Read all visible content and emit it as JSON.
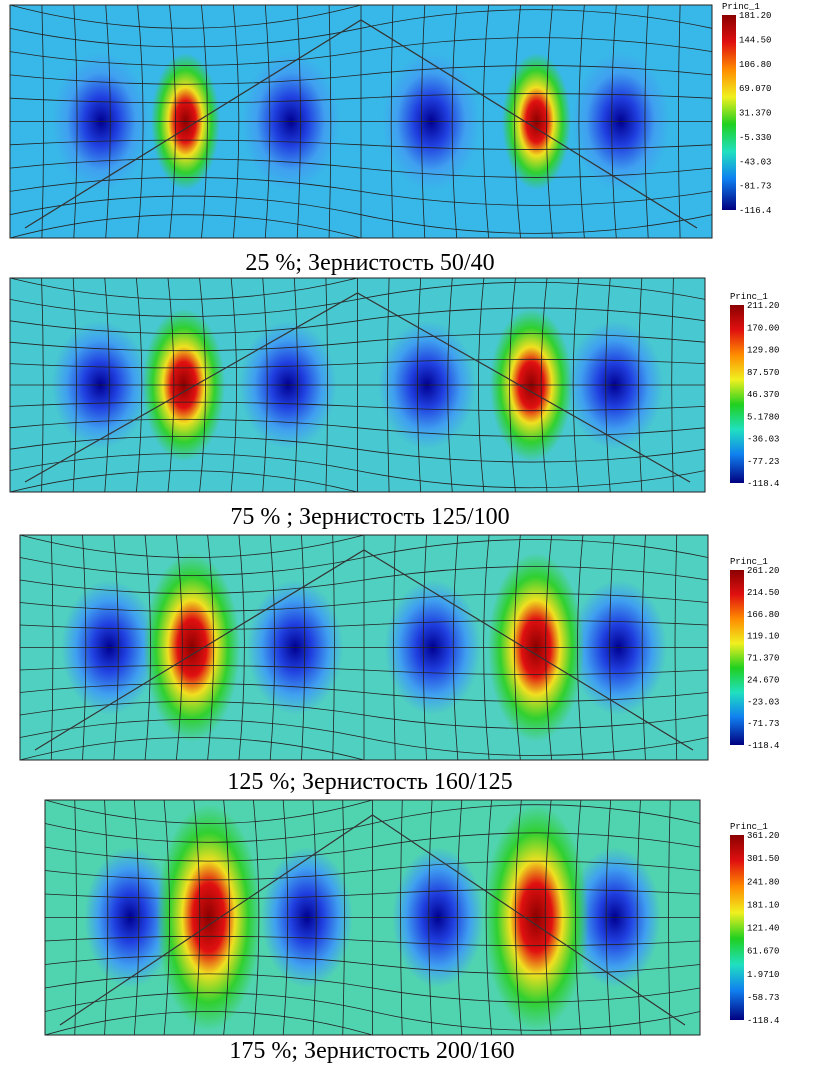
{
  "panels": [
    {
      "legend": {
        "title": "Princ_1",
        "labels": [
          "181.20",
          "144.50",
          "106.80",
          "69.070",
          "31.370",
          "-5.330",
          "-43.03",
          "-81.73",
          "-116.4"
        ]
      },
      "caption": "25 %; Зернистость 50/40"
    },
    {
      "legend": {
        "title": "Princ_1",
        "labels": [
          "211.20",
          "170.00",
          "129.80",
          "87.570",
          "46.370",
          "5.1780",
          "-36.03",
          "-77.23",
          "-118.4"
        ]
      },
      "caption": "75 % ; Зернистость 125/100"
    },
    {
      "legend": {
        "title": "Princ_1",
        "labels": [
          "261.20",
          "214.50",
          "166.80",
          "119.10",
          "71.370",
          "24.670",
          "-23.03",
          "-71.73",
          "-118.4"
        ]
      },
      "caption": "125 %; Зернистость 160/125"
    },
    {
      "legend": {
        "title": "Princ_1",
        "labels": [
          "361.20",
          "301.50",
          "241.80",
          "181.10",
          "121.40",
          "61.670",
          "1.9710",
          "-58.73",
          "-118.4"
        ]
      },
      "caption": "175 %; Зернистость 200/160"
    }
  ]
}
